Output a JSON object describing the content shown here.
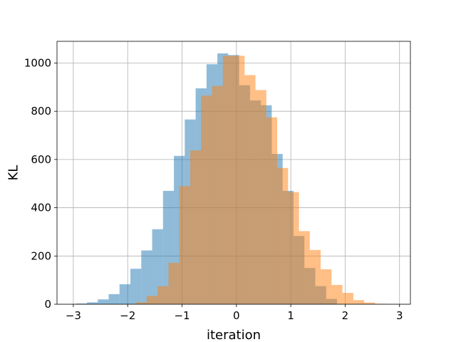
{
  "chart_data": {
    "type": "bar",
    "title": "",
    "xlabel": "iteration",
    "ylabel": "KL",
    "xlim": [
      -3.3,
      3.2
    ],
    "ylim": [
      0,
      1090
    ],
    "xticks": [
      -3,
      -2,
      -1,
      0,
      1,
      2,
      3
    ],
    "xtick_labels": [
      "−3",
      "−2",
      "−1",
      "0",
      "1",
      "2",
      "3"
    ],
    "yticks": [
      0,
      200,
      400,
      600,
      800,
      1000
    ],
    "ytick_labels": [
      "0",
      "200",
      "400",
      "600",
      "800",
      "1000"
    ],
    "grid": true,
    "series": [
      {
        "color": "#1f77b4",
        "opacity": 0.5,
        "bins": [
          {
            "x0": -2.95,
            "x1": -2.75,
            "y": 3
          },
          {
            "x0": -2.75,
            "x1": -2.55,
            "y": 8
          },
          {
            "x0": -2.55,
            "x1": -2.35,
            "y": 20
          },
          {
            "x0": -2.35,
            "x1": -2.15,
            "y": 42
          },
          {
            "x0": -2.15,
            "x1": -1.95,
            "y": 83
          },
          {
            "x0": -1.95,
            "x1": -1.75,
            "y": 147
          },
          {
            "x0": -1.75,
            "x1": -1.55,
            "y": 223
          },
          {
            "x0": -1.55,
            "x1": -1.35,
            "y": 311
          },
          {
            "x0": -1.35,
            "x1": -1.15,
            "y": 470
          },
          {
            "x0": -1.15,
            "x1": -0.95,
            "y": 615
          },
          {
            "x0": -0.95,
            "x1": -0.75,
            "y": 766
          },
          {
            "x0": -0.75,
            "x1": -0.55,
            "y": 895
          },
          {
            "x0": -0.55,
            "x1": -0.35,
            "y": 995
          },
          {
            "x0": -0.35,
            "x1": -0.15,
            "y": 1040
          },
          {
            "x0": -0.15,
            "x1": 0.05,
            "y": 1033
          },
          {
            "x0": 0.05,
            "x1": 0.25,
            "y": 908
          },
          {
            "x0": 0.25,
            "x1": 0.45,
            "y": 845
          },
          {
            "x0": 0.45,
            "x1": 0.65,
            "y": 825
          },
          {
            "x0": 0.65,
            "x1": 0.85,
            "y": 623
          },
          {
            "x0": 0.85,
            "x1": 1.05,
            "y": 470
          },
          {
            "x0": 1.05,
            "x1": 1.25,
            "y": 283
          },
          {
            "x0": 1.25,
            "x1": 1.45,
            "y": 150
          },
          {
            "x0": 1.45,
            "x1": 1.65,
            "y": 75
          },
          {
            "x0": 1.65,
            "x1": 1.85,
            "y": 22
          }
        ]
      },
      {
        "color": "#ff7f0e",
        "opacity": 0.5,
        "bins": [
          {
            "x0": -1.85,
            "x1": -1.65,
            "y": 8
          },
          {
            "x0": -1.65,
            "x1": -1.45,
            "y": 35
          },
          {
            "x0": -1.45,
            "x1": -1.25,
            "y": 75
          },
          {
            "x0": -1.25,
            "x1": -1.05,
            "y": 172
          },
          {
            "x0": -1.05,
            "x1": -0.85,
            "y": 490
          },
          {
            "x0": -0.85,
            "x1": -0.65,
            "y": 638
          },
          {
            "x0": -0.65,
            "x1": -0.45,
            "y": 865
          },
          {
            "x0": -0.45,
            "x1": -0.25,
            "y": 905
          },
          {
            "x0": -0.25,
            "x1": -0.05,
            "y": 1030
          },
          {
            "x0": -0.05,
            "x1": 0.15,
            "y": 1030
          },
          {
            "x0": 0.15,
            "x1": 0.35,
            "y": 950
          },
          {
            "x0": 0.35,
            "x1": 0.55,
            "y": 888
          },
          {
            "x0": 0.55,
            "x1": 0.75,
            "y": 775
          },
          {
            "x0": 0.75,
            "x1": 0.95,
            "y": 565
          },
          {
            "x0": 0.95,
            "x1": 1.15,
            "y": 465
          },
          {
            "x0": 1.15,
            "x1": 1.35,
            "y": 303
          },
          {
            "x0": 1.35,
            "x1": 1.55,
            "y": 225
          },
          {
            "x0": 1.55,
            "x1": 1.75,
            "y": 145
          },
          {
            "x0": 1.75,
            "x1": 1.95,
            "y": 80
          },
          {
            "x0": 1.95,
            "x1": 2.15,
            "y": 47
          },
          {
            "x0": 2.15,
            "x1": 2.35,
            "y": 17
          },
          {
            "x0": 2.35,
            "x1": 2.55,
            "y": 7
          },
          {
            "x0": 2.55,
            "x1": 2.75,
            "y": 2
          }
        ]
      }
    ]
  }
}
